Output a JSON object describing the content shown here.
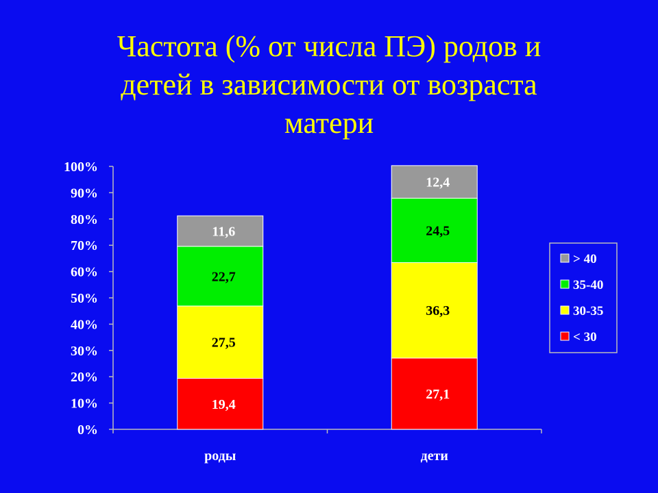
{
  "slide": {
    "title_lines": [
      "Частота (% от числа ПЭ) родов и",
      "детей в зависимости от возраста",
      "матери"
    ]
  },
  "chart_data": {
    "type": "bar",
    "stacked": true,
    "percent_stacked": true,
    "title": "Частота (% от числа ПЭ) родов и детей в зависимости от возраста матери",
    "categories": [
      "роды",
      "дети"
    ],
    "series": [
      {
        "name": "< 30",
        "color": "#ff0000",
        "label_color": "#ffffff",
        "values": [
          19.4,
          27.1
        ],
        "labels": [
          "19,4",
          "27,1"
        ]
      },
      {
        "name": "30-35",
        "color": "#ffff00",
        "label_color": "#000000",
        "values": [
          27.5,
          36.3
        ],
        "labels": [
          "27,5",
          "36,3"
        ]
      },
      {
        "name": "35-40",
        "color": "#00ee00",
        "label_color": "#000000",
        "values": [
          22.7,
          24.5
        ],
        "labels": [
          "22,7",
          "24,5"
        ]
      },
      {
        "name": "> 40",
        "color": "#999999",
        "label_color": "#ffffff",
        "values": [
          11.6,
          12.4
        ],
        "labels": [
          "11,6",
          "12,4"
        ]
      }
    ],
    "ylim": [
      0,
      100
    ],
    "yticks": [
      "0%",
      "10%",
      "20%",
      "30%",
      "40%",
      "50%",
      "60%",
      "70%",
      "80%",
      "90%",
      "100%"
    ],
    "legend_position": "right",
    "legend_order": [
      "> 40",
      "35-40",
      "30-35",
      "< 30"
    ],
    "grid": false
  }
}
